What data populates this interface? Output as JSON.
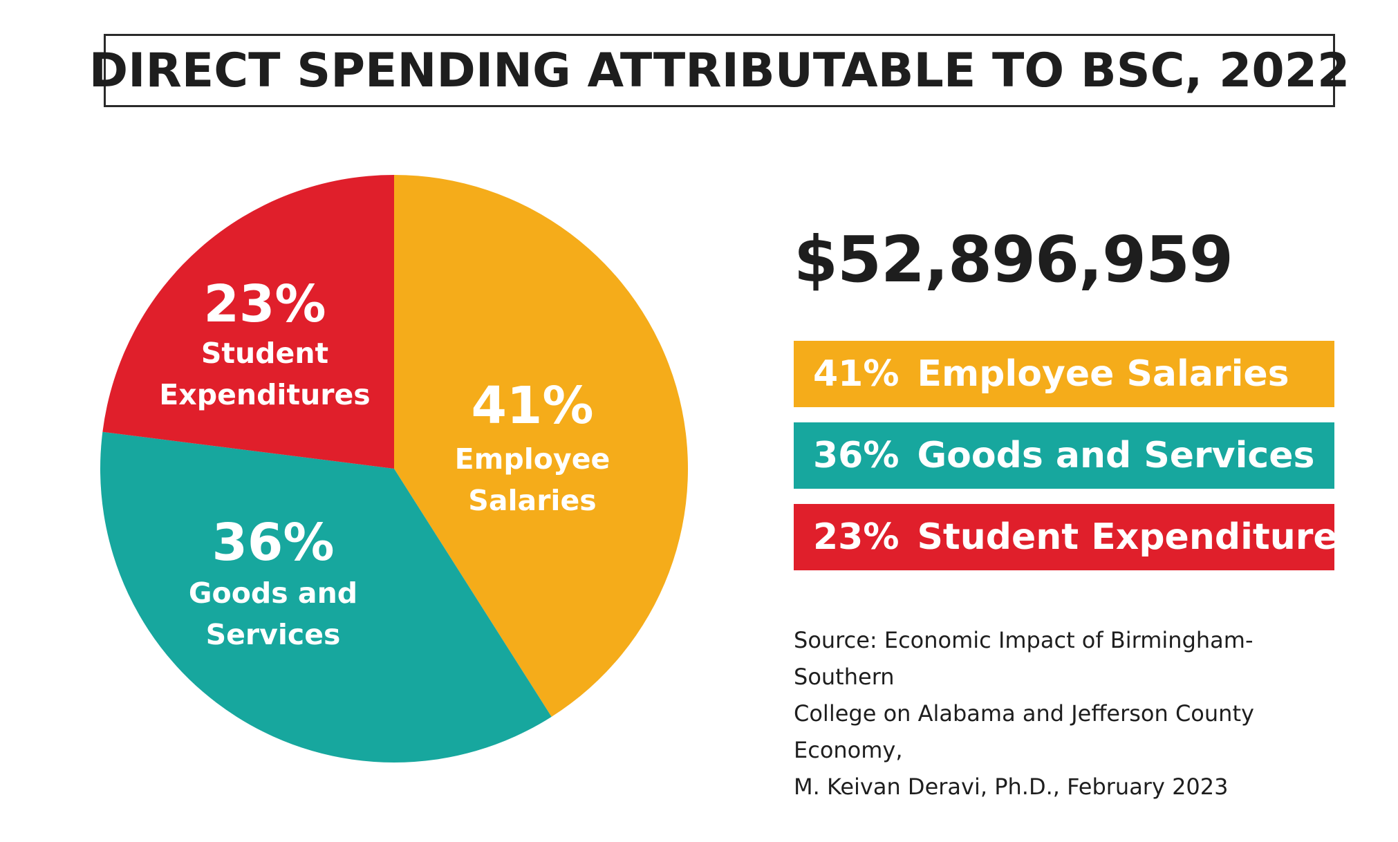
{
  "chart_data": {
    "type": "pie",
    "title": "DIRECT SPENDING ATTRIBUTABLE TO BSC, 2022",
    "total_label": "$52,896,959",
    "slices": [
      {
        "pct_label": "41%",
        "value": 41,
        "label_lines": [
          "Employee",
          "Salaries"
        ],
        "legend_label": "Employee Salaries",
        "color": "#f5ac1a"
      },
      {
        "pct_label": "36%",
        "value": 36,
        "label_lines": [
          "Goods and",
          "Services"
        ],
        "legend_label": "Goods and Services",
        "color": "#17a79e"
      },
      {
        "pct_label": "23%",
        "value": 23,
        "label_lines": [
          "Student",
          "Expenditures"
        ],
        "legend_label": "Student Expenditures",
        "color": "#e01f2b"
      }
    ],
    "source_lines": [
      "Source: Economic Impact of Birmingham-Southern",
      "College on Alabama and Jefferson County Economy,",
      "M. Keivan Deravi, Ph.D., February 2023"
    ]
  }
}
